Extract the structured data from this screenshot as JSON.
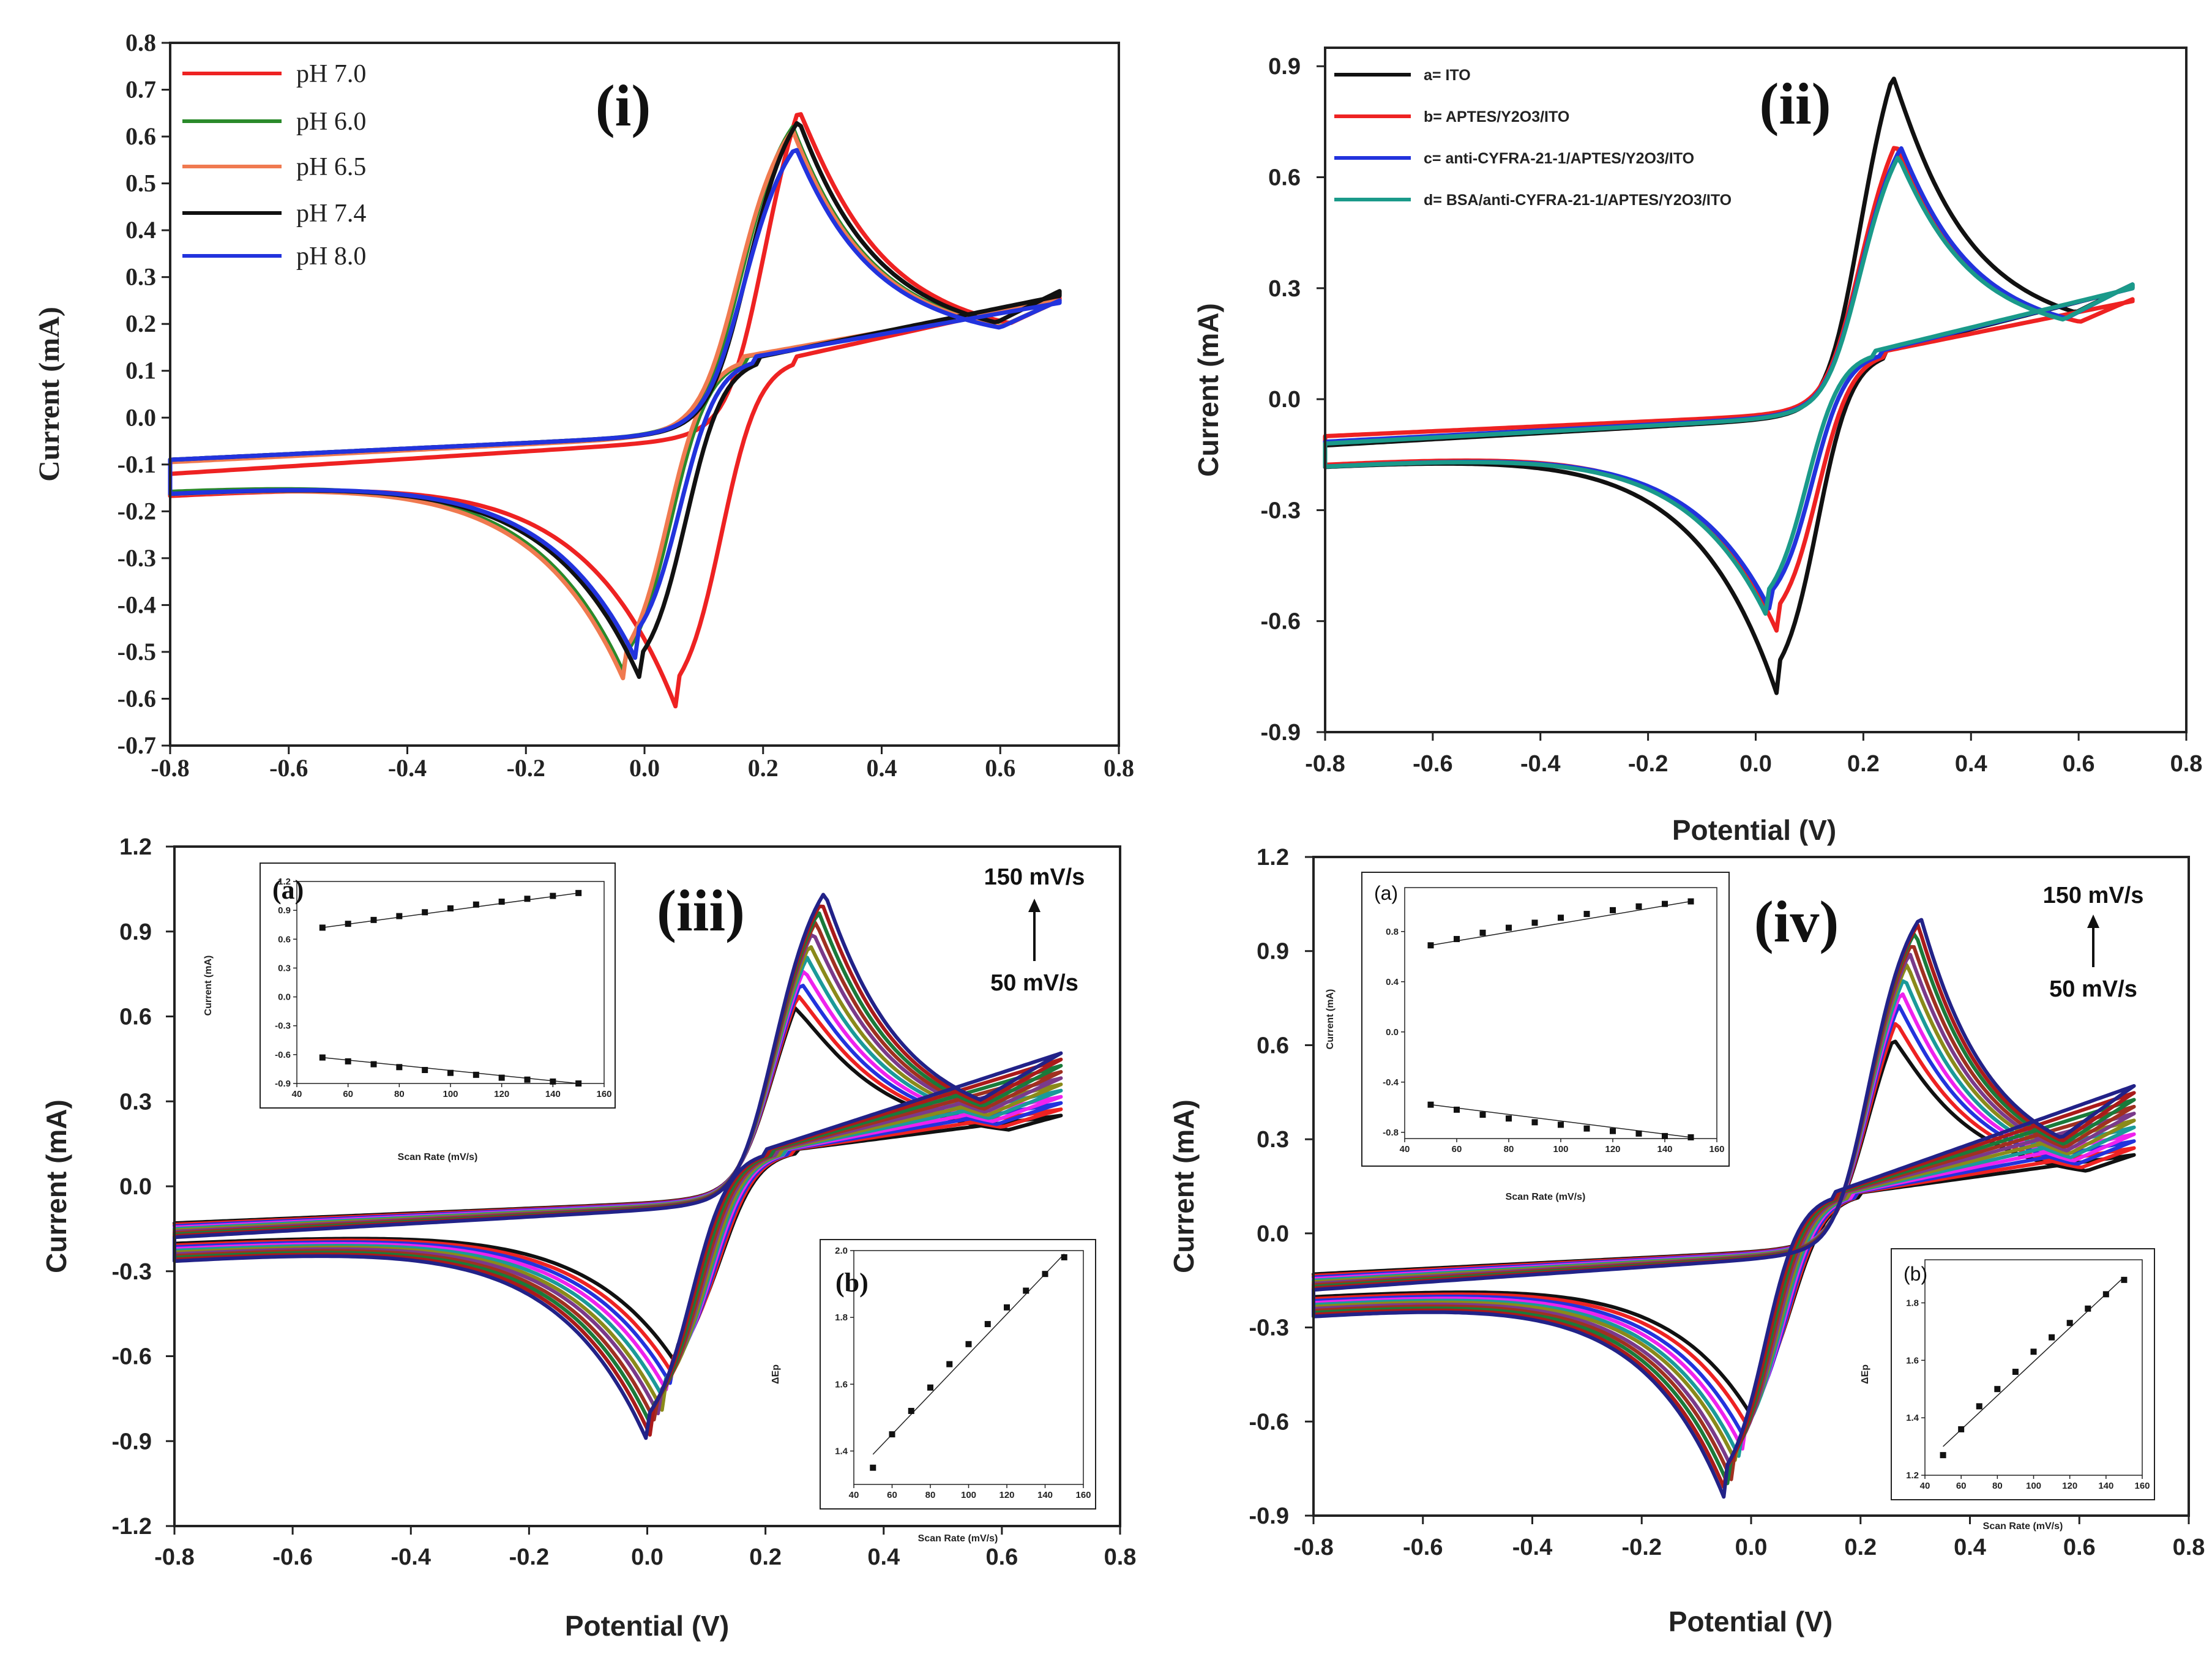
{
  "chart_data": [
    {
      "id": "i",
      "type": "line",
      "panel_label": "(i)",
      "xlabel": "",
      "ylabel": "Current (mA)",
      "xlim": [
        -0.8,
        0.8
      ],
      "ylim": [
        -0.7,
        0.8
      ],
      "xticks": [
        -0.8,
        -0.6,
        -0.4,
        -0.2,
        0.0,
        0.2,
        0.4,
        0.6,
        0.8
      ],
      "yticks": [
        -0.7,
        -0.6,
        -0.5,
        -0.4,
        -0.3,
        -0.2,
        -0.1,
        0.0,
        0.1,
        0.2,
        0.3,
        0.4,
        0.5,
        0.6,
        0.7,
        0.8
      ],
      "xtick_labels": [
        "-0.8",
        "-0.6",
        "-0.4",
        "-0.2",
        "0.0",
        "0.2",
        "0.4",
        "0.6",
        "0.8"
      ],
      "ytick_labels": [
        "-0.7",
        "-0.6",
        "-0.5",
        "-0.4",
        "-0.3",
        "-0.2",
        "-0.1",
        "0.0",
        "0.1",
        "0.2",
        "0.3",
        "0.4",
        "0.5",
        "0.6",
        "0.7",
        "0.8"
      ],
      "legend_position": "top-left",
      "series": [
        {
          "name": "pH 7.0",
          "color": "#ee2222",
          "E0": 0.16,
          "Ea": 0.26,
          "Ia": 0.715,
          "Ec": 0.055,
          "Ic": -0.625,
          "bgAnodicStart": -0.12,
          "bgCathodicStart": -0.165,
          "bgEndUpper": 0.25,
          "bgEndLower": 0.255
        },
        {
          "name": "pH 6.0",
          "color": "#2a8a2a",
          "E0": 0.12,
          "Ea": 0.25,
          "Ia": 0.645,
          "Ec": -0.03,
          "Ic": -0.56,
          "bgAnodicStart": -0.09,
          "bgCathodicStart": -0.155,
          "bgEndUpper": 0.25,
          "bgEndLower": 0.25
        },
        {
          "name": "pH 6.5",
          "color": "#f07a50",
          "E0": 0.115,
          "Ea": 0.25,
          "Ia": 0.635,
          "Ec": -0.035,
          "Ic": -0.56,
          "bgAnodicStart": -0.095,
          "bgCathodicStart": -0.16,
          "bgEndUpper": 0.25,
          "bgEndLower": 0.25
        },
        {
          "name": "pH 7.4",
          "color": "#111111",
          "E0": 0.13,
          "Ea": 0.26,
          "Ia": 0.66,
          "Ec": -0.005,
          "Ic": -0.565,
          "bgAnodicStart": -0.09,
          "bgCathodicStart": -0.16,
          "bgEndUpper": 0.27,
          "bgEndLower": 0.26
        },
        {
          "name": "pH 8.0",
          "color": "#2233dd",
          "E0": 0.125,
          "Ea": 0.255,
          "Ia": 0.6,
          "Ec": -0.015,
          "Ic": -0.515,
          "bgAnodicStart": -0.09,
          "bgCathodicStart": -0.16,
          "bgEndUpper": 0.25,
          "bgEndLower": 0.245
        }
      ]
    },
    {
      "id": "ii",
      "type": "line",
      "panel_label": "(ii)",
      "xlabel": "Potential (V)",
      "ylabel": "Current (mA)",
      "xlim": [
        -0.8,
        0.8
      ],
      "ylim": [
        -0.9,
        0.95
      ],
      "xticks": [
        -0.8,
        -0.6,
        -0.4,
        -0.2,
        0.0,
        0.2,
        0.4,
        0.6,
        0.8
      ],
      "yticks": [
        -0.9,
        -0.6,
        -0.3,
        0.0,
        0.3,
        0.6,
        0.9
      ],
      "xtick_labels": [
        "-0.8",
        "-0.6",
        "-0.4",
        "-0.2",
        "0.0",
        "0.2",
        "0.4",
        "0.6",
        "0.8"
      ],
      "ytick_labels": [
        "-0.9",
        "-0.6",
        "-0.3",
        "0.0",
        "0.3",
        "0.6",
        "0.9"
      ],
      "legend_position": "top-left",
      "series": [
        {
          "name": "a= ITO",
          "color": "#111111",
          "E0": 0.15,
          "Ea": 0.255,
          "Ia": 0.94,
          "Ec": 0.04,
          "Ic": -0.8,
          "bgAnodicStart": -0.125,
          "bgCathodicStart": -0.18,
          "bgEndUpper": 0.31,
          "bgEndLower": 0.3
        },
        {
          "name": "b= APTES/Y2O3/ITO",
          "color": "#ee2222",
          "E0": 0.15,
          "Ea": 0.26,
          "Ia": 0.735,
          "Ec": 0.04,
          "Ic": -0.63,
          "bgAnodicStart": -0.1,
          "bgCathodicStart": -0.175,
          "bgEndUpper": 0.27,
          "bgEndLower": 0.265
        },
        {
          "name": "c= anti-CYFRA-21-1/APTES/Y2O3/ITO",
          "color": "#2233dd",
          "E0": 0.15,
          "Ea": 0.27,
          "Ia": 0.715,
          "Ec": 0.03,
          "Ic": -0.58,
          "bgAnodicStart": -0.115,
          "bgCathodicStart": -0.18,
          "bgEndUpper": 0.31,
          "bgEndLower": 0.3
        },
        {
          "name": "d= BSA/anti-CYFRA-21-1/APTES/Y2O3/ITO",
          "color": "#1a9a8a",
          "E0": 0.15,
          "Ea": 0.265,
          "Ia": 0.695,
          "Ec": 0.02,
          "Ic": -0.585,
          "bgAnodicStart": -0.12,
          "bgCathodicStart": -0.18,
          "bgEndUpper": 0.31,
          "bgEndLower": 0.3
        }
      ]
    },
    {
      "id": "iii",
      "type": "line",
      "panel_label": "(iii)",
      "xlabel": "Potential (V)",
      "ylabel": "Current (mA)",
      "xlim": [
        -0.8,
        0.8
      ],
      "ylim": [
        -1.2,
        1.2
      ],
      "xticks": [
        -0.8,
        -0.6,
        -0.4,
        -0.2,
        0.0,
        0.2,
        0.4,
        0.6,
        0.8
      ],
      "yticks": [
        -1.2,
        -0.9,
        -0.6,
        -0.3,
        0.0,
        0.3,
        0.6,
        0.9,
        1.2
      ],
      "xtick_labels": [
        "-0.8",
        "-0.6",
        "-0.4",
        "-0.2",
        "0.0",
        "0.2",
        "0.4",
        "0.6",
        "0.8"
      ],
      "ytick_labels": [
        "-1.2",
        "-0.9",
        "-0.6",
        "-0.3",
        "0.0",
        "0.3",
        "0.6",
        "0.9",
        "1.2"
      ],
      "scan_high": "150 mV/s",
      "scan_low": "50 mV/s",
      "scan_rates": [
        50,
        60,
        70,
        80,
        90,
        100,
        110,
        120,
        130,
        140,
        150
      ],
      "colors": [
        "#111111",
        "#ee2222",
        "#2233dd",
        "#ee22ee",
        "#1a9a9a",
        "#8a8a1a",
        "#7a3a8a",
        "#a03020",
        "#1a7a3a",
        "#aa1a1a",
        "#222288"
      ],
      "Ia": [
        0.72,
        0.76,
        0.8,
        0.84,
        0.88,
        0.92,
        0.96,
        0.99,
        1.02,
        1.05,
        1.08
      ],
      "Ic": [
        -0.63,
        -0.67,
        -0.7,
        -0.73,
        -0.76,
        -0.79,
        -0.81,
        -0.84,
        -0.86,
        -0.88,
        -0.9
      ],
      "Ea": [
        0.25,
        0.255,
        0.26,
        0.265,
        0.27,
        0.275,
        0.28,
        0.285,
        0.29,
        0.295,
        0.3
      ],
      "Ec": [
        0.05,
        0.045,
        0.04,
        0.035,
        0.03,
        0.025,
        0.02,
        0.015,
        0.01,
        0.005,
        0.0
      ],
      "insets": [
        {
          "id": "iii-a",
          "label": "(a)",
          "type": "scatter",
          "xlabel": "Scan Rate (mV/s)",
          "ylabel": "Current (mA)",
          "xlim": [
            40,
            160
          ],
          "ylim": [
            -0.9,
            1.2
          ],
          "xticks": [
            40,
            60,
            80,
            100,
            120,
            140,
            160
          ],
          "yticks": [
            -0.9,
            -0.6,
            -0.3,
            0.0,
            0.3,
            0.6,
            0.9,
            1.2
          ],
          "xtick_labels": [
            "40",
            "60",
            "80",
            "100",
            "120",
            "140",
            "160"
          ],
          "ytick_labels": [
            "-0.9",
            "-0.6",
            "-0.3",
            "0.0",
            "0.3",
            "0.6",
            "0.9",
            "1.2"
          ],
          "x": [
            50,
            60,
            70,
            80,
            90,
            100,
            110,
            120,
            130,
            140,
            150
          ],
          "series": [
            {
              "name": "anodic",
              "values": [
                0.72,
                0.76,
                0.8,
                0.84,
                0.88,
                0.92,
                0.96,
                0.99,
                1.02,
                1.05,
                1.08
              ]
            },
            {
              "name": "cathodic",
              "values": [
                -0.63,
                -0.67,
                -0.7,
                -0.73,
                -0.76,
                -0.79,
                -0.81,
                -0.84,
                -0.86,
                -0.88,
                -0.9
              ]
            }
          ]
        },
        {
          "id": "iii-b",
          "label": "(b)",
          "type": "scatter",
          "xlabel": "Scan Rate (mV/s)",
          "ylabel": "ΔEp",
          "xlim": [
            40,
            160
          ],
          "ylim": [
            1.3,
            2.0
          ],
          "xticks": [
            40,
            60,
            80,
            100,
            120,
            140,
            160
          ],
          "yticks": [
            1.4,
            1.6,
            1.8,
            2.0
          ],
          "xtick_labels": [
            "40",
            "60",
            "80",
            "100",
            "120",
            "140",
            "160"
          ],
          "ytick_labels": [
            "1.4",
            "1.6",
            "1.8",
            "2.0"
          ],
          "x": [
            50,
            60,
            70,
            80,
            90,
            100,
            110,
            120,
            130,
            140,
            150
          ],
          "values": [
            1.35,
            1.45,
            1.52,
            1.59,
            1.66,
            1.72,
            1.78,
            1.83,
            1.88,
            1.93,
            1.98
          ],
          "fit": [
            1.39,
            1.99
          ]
        }
      ]
    },
    {
      "id": "iv",
      "type": "line",
      "panel_label": "(iv)",
      "xlabel": "Potential (V)",
      "ylabel": "Current (mA)",
      "xlim": [
        -0.8,
        0.8
      ],
      "ylim": [
        -0.9,
        1.2
      ],
      "xticks": [
        -0.8,
        -0.6,
        -0.4,
        -0.2,
        0.0,
        0.2,
        0.4,
        0.6,
        0.8
      ],
      "yticks": [
        -0.9,
        -0.6,
        -0.3,
        0.0,
        0.3,
        0.6,
        0.9,
        1.2
      ],
      "xtick_labels": [
        "-0.8",
        "-0.6",
        "-0.4",
        "-0.2",
        "0.0",
        "0.2",
        "0.4",
        "0.6",
        "0.8"
      ],
      "ytick_labels": [
        "-0.9",
        "-0.6",
        "-0.3",
        "0.0",
        "0.3",
        "0.6",
        "0.9",
        "1.2"
      ],
      "scan_high": "150 mV/s",
      "scan_low": "50 mV/s",
      "scan_rates": [
        50,
        60,
        70,
        80,
        90,
        100,
        110,
        120,
        130,
        140,
        150
      ],
      "colors": [
        "#111111",
        "#ee2222",
        "#2233dd",
        "#ee22ee",
        "#1a9a9a",
        "#8a8a1a",
        "#7a3a8a",
        "#a03020",
        "#1a7a3a",
        "#aa1a1a",
        "#222288"
      ],
      "Ia": [
        0.69,
        0.74,
        0.79,
        0.83,
        0.87,
        0.91,
        0.94,
        0.97,
        1.0,
        1.02,
        1.04
      ],
      "Ic": [
        -0.58,
        -0.62,
        -0.66,
        -0.69,
        -0.72,
        -0.74,
        -0.77,
        -0.79,
        -0.81,
        -0.83,
        -0.84
      ],
      "Ea": [
        0.26,
        0.265,
        0.27,
        0.275,
        0.28,
        0.285,
        0.29,
        0.295,
        0.3,
        0.305,
        0.31
      ],
      "Ec": [
        0.0,
        -0.005,
        -0.01,
        -0.015,
        -0.02,
        -0.025,
        -0.03,
        -0.035,
        -0.04,
        -0.045,
        -0.05
      ],
      "insets": [
        {
          "id": "iv-a",
          "label": "(a)",
          "type": "scatter",
          "xlabel": "Scan Rate (mV/s)",
          "ylabel": "Current (mA)",
          "xlim": [
            40,
            160
          ],
          "ylim": [
            -0.85,
            1.15
          ],
          "xticks": [
            40,
            60,
            80,
            100,
            120,
            140,
            160
          ],
          "yticks": [
            -0.8,
            -0.4,
            0.0,
            0.4,
            0.8
          ],
          "xtick_labels": [
            "40",
            "60",
            "80",
            "100",
            "120",
            "140",
            "160"
          ],
          "ytick_labels": [
            "-0.8",
            "-0.4",
            "0.0",
            "0.4",
            "0.8"
          ],
          "x": [
            50,
            60,
            70,
            80,
            90,
            100,
            110,
            120,
            130,
            140,
            150
          ],
          "series": [
            {
              "name": "anodic",
              "values": [
                0.69,
                0.74,
                0.79,
                0.83,
                0.87,
                0.91,
                0.94,
                0.97,
                1.0,
                1.02,
                1.04
              ]
            },
            {
              "name": "cathodic",
              "values": [
                -0.58,
                -0.62,
                -0.66,
                -0.69,
                -0.72,
                -0.74,
                -0.77,
                -0.79,
                -0.81,
                -0.83,
                -0.84
              ]
            }
          ]
        },
        {
          "id": "iv-b",
          "label": "(b)",
          "type": "scatter",
          "xlabel": "Scan Rate (mV/s)",
          "ylabel": "ΔEp",
          "xlim": [
            40,
            160
          ],
          "ylim": [
            1.2,
            1.95
          ],
          "xticks": [
            40,
            60,
            80,
            100,
            120,
            140,
            160
          ],
          "yticks": [
            1.2,
            1.4,
            1.6,
            1.8
          ],
          "xtick_labels": [
            "40",
            "60",
            "80",
            "100",
            "120",
            "140",
            "160"
          ],
          "ytick_labels": [
            "1.2",
            "1.4",
            "1.6",
            "1.8"
          ],
          "x": [
            50,
            60,
            70,
            80,
            90,
            100,
            110,
            120,
            130,
            140,
            150
          ],
          "values": [
            1.27,
            1.36,
            1.44,
            1.5,
            1.56,
            1.63,
            1.68,
            1.73,
            1.78,
            1.83,
            1.88
          ],
          "fit": [
            1.3,
            1.89
          ]
        }
      ]
    }
  ]
}
